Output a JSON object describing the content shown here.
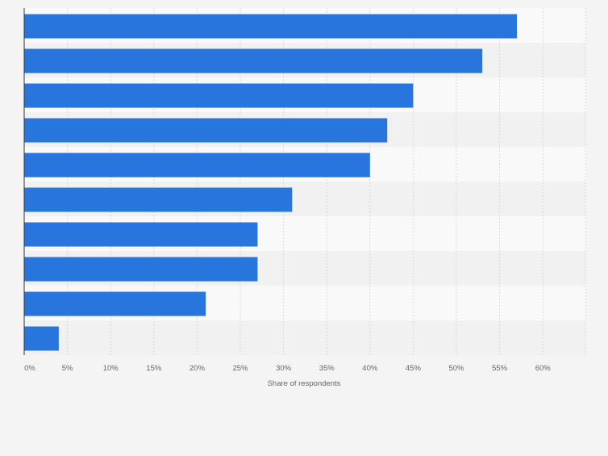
{
  "chart_data": {
    "type": "bar",
    "orientation": "horizontal",
    "title": "",
    "xlabel": "Share of respondents",
    "ylabel": "",
    "categories": [
      "",
      "",
      "",
      "",
      "",
      "",
      "",
      "",
      "",
      ""
    ],
    "values": [
      57,
      53,
      45,
      42,
      40,
      31,
      27,
      27,
      21,
      4
    ],
    "unit": "%",
    "xlim": [
      0,
      65
    ],
    "xticks": [
      0,
      5,
      10,
      15,
      20,
      25,
      30,
      35,
      40,
      45,
      50,
      55,
      60
    ],
    "xtick_labels": [
      "0%",
      "5%",
      "10%",
      "15%",
      "20%",
      "25%",
      "30%",
      "35%",
      "40%",
      "45%",
      "50%",
      "55%",
      "60%"
    ],
    "grid": true,
    "legend": "none"
  },
  "colors": {
    "bar": "#2876dd",
    "band_light": "#f9f9f9",
    "band_dark": "#f1f1f1",
    "background": "#f4f4f4",
    "grid": "#d9d9d9",
    "axis": "#333333",
    "text": "#666666"
  }
}
